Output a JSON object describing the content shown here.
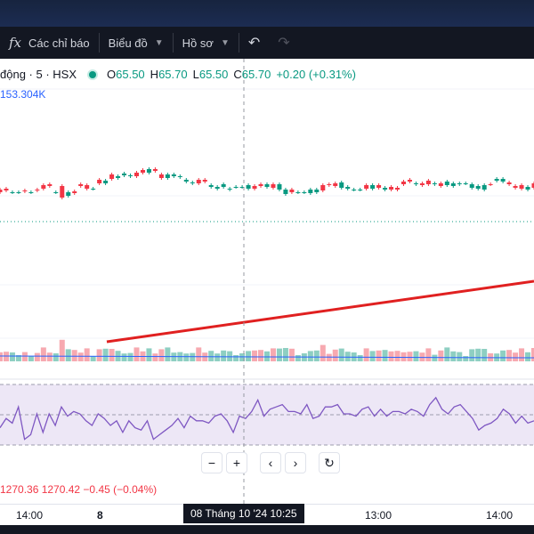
{
  "toolbar": {
    "indicators_label": "Các chỉ báo",
    "chart_label": "Biểu đồ",
    "profile_label": "Hồ sơ",
    "icons": [
      "fx-icon",
      "chevron-down-icon",
      "undo-icon",
      "redo-icon"
    ]
  },
  "legend": {
    "symbol": "động · 5 · HSX",
    "open_label": "O",
    "open": "65.50",
    "high_label": "H",
    "high": "65.70",
    "low_label": "L",
    "low": "65.50",
    "close_label": "C",
    "close": "65.70",
    "change": "+0.20 (+0.31%)"
  },
  "volume_value": "153.304K",
  "bottom_legend": "1270.36  1270.42  −0.45 (−0.04%)",
  "nav": [
    "−",
    "+",
    "‹",
    "›",
    "↻"
  ],
  "time_axis": {
    "labels": [
      "14:00",
      "8",
      "13:00",
      "14:00"
    ],
    "crosshair": "08 Tháng 10 '24   10:25"
  },
  "colors": {
    "up": "#089981",
    "down": "#f23645",
    "up_vol": "#8ecfc2",
    "down_vol": "#f7a9b0",
    "trend": "#e02020",
    "rsi": "#7e57c2"
  },
  "candles": [
    {
      "d": 1,
      "o": 0.3,
      "c": 0.0
    },
    {
      "d": 1,
      "o": 0.2,
      "c": 0.4
    },
    {
      "d": 0,
      "o": 0.0,
      "c": 0.0
    },
    {
      "d": 0,
      "o": 0.0,
      "c": 0.0
    },
    {
      "d": 1,
      "o": 0.1,
      "c": 0.2
    },
    {
      "d": 0,
      "o": 0.0,
      "c": 0.0
    },
    {
      "d": 1,
      "o": 0.2,
      "c": 0.3
    },
    {
      "d": 1,
      "o": 0.4,
      "c": 0.8
    },
    {
      "d": 1,
      "o": 0.7,
      "c": 0.9
    },
    {
      "d": 0,
      "o": 0.0,
      "c": 0.0
    },
    {
      "d": 1,
      "o": -0.6,
      "c": 0.7
    },
    {
      "d": 0,
      "o": 0.0,
      "c": -0.4
    },
    {
      "d": 1,
      "o": -0.1,
      "c": 0.1
    },
    {
      "d": 1,
      "o": 0.7,
      "c": 0.9
    },
    {
      "d": 1,
      "o": 0.4,
      "c": 0.8
    },
    {
      "d": 0,
      "o": 0.4,
      "c": 0.4
    },
    {
      "d": 1,
      "o": 1.0,
      "c": 1.4
    },
    {
      "d": 0,
      "o": 1.0,
      "c": 1.3
    },
    {
      "d": 1,
      "o": 1.5,
      "c": 2.0
    },
    {
      "d": 0,
      "o": 1.6,
      "c": 1.8
    },
    {
      "d": 0,
      "o": 2.1,
      "c": 1.9
    },
    {
      "d": 0,
      "o": 1.9,
      "c": 1.8
    },
    {
      "d": 1,
      "o": 1.8,
      "c": 2.2
    },
    {
      "d": 1,
      "o": 2.2,
      "c": 2.5
    },
    {
      "d": 0,
      "o": 2.6,
      "c": 2.2
    },
    {
      "d": 1,
      "o": 2.4,
      "c": 2.6
    },
    {
      "d": 1,
      "o": 1.6,
      "c": 2.0
    },
    {
      "d": 0,
      "o": 2.0,
      "c": 1.6
    },
    {
      "d": 0,
      "o": 2.0,
      "c": 1.8
    },
    {
      "d": 0,
      "o": 1.8,
      "c": 1.7
    },
    {
      "d": 0,
      "o": 1.4,
      "c": 1.2
    },
    {
      "d": 0,
      "o": 1.0,
      "c": 1.1
    },
    {
      "d": 1,
      "o": 1.0,
      "c": 1.4
    },
    {
      "d": 1,
      "o": 1.4,
      "c": 1.2
    },
    {
      "d": 0,
      "o": 0.6,
      "c": 0.8
    },
    {
      "d": 0,
      "o": 0.6,
      "c": 0.4
    },
    {
      "d": 0,
      "o": 0.9,
      "c": 0.6
    },
    {
      "d": 0,
      "o": 0.3,
      "c": 0.4
    },
    {
      "d": 0,
      "o": 0.6,
      "c": 0.6
    },
    {
      "d": 0,
      "o": 0.6,
      "c": 0.6
    },
    {
      "d": 0,
      "o": 0.8,
      "c": 0.4
    },
    {
      "d": 1,
      "o": 0.4,
      "c": 0.7
    },
    {
      "d": 1,
      "o": 0.7,
      "c": 0.9
    },
    {
      "d": 0,
      "o": 0.9,
      "c": 0.6
    },
    {
      "d": 1,
      "o": 0.5,
      "c": 0.9
    },
    {
      "d": 0,
      "o": 0.9,
      "c": 0.3
    },
    {
      "d": 0,
      "o": 0.3,
      "c": -0.2
    },
    {
      "d": 1,
      "o": 0.0,
      "c": 0.3
    },
    {
      "d": 0,
      "o": 0.0,
      "c": 0.0
    },
    {
      "d": 0,
      "o": 0.0,
      "c": 0.0
    },
    {
      "d": 0,
      "o": 0.3,
      "c": -0.1
    },
    {
      "d": 0,
      "o": 0.3,
      "c": 0.0
    },
    {
      "d": 1,
      "o": 0.2,
      "c": 0.8
    },
    {
      "d": 1,
      "o": 0.8,
      "c": 0.9
    },
    {
      "d": 1,
      "o": 0.7,
      "c": 1.0
    },
    {
      "d": 0,
      "o": 1.1,
      "c": 0.5
    },
    {
      "d": 0,
      "o": 0.4,
      "c": 0.6
    },
    {
      "d": 0,
      "o": 0.3,
      "c": 0.3
    },
    {
      "d": 0,
      "o": 0.3,
      "c": 0.3
    },
    {
      "d": 1,
      "o": 0.4,
      "c": 0.8
    },
    {
      "d": 0,
      "o": 0.8,
      "c": 0.4
    },
    {
      "d": 1,
      "o": 0.8,
      "c": 0.5
    },
    {
      "d": 0,
      "o": 0.3,
      "c": 0.5
    },
    {
      "d": 1,
      "o": 0.6,
      "c": 0.3
    },
    {
      "d": 1,
      "o": 0.3,
      "c": 0.5
    },
    {
      "d": 1,
      "o": 0.9,
      "c": 1.2
    },
    {
      "d": 1,
      "o": 1.2,
      "c": 1.4
    },
    {
      "d": 0,
      "o": 0.9,
      "c": 1.0
    },
    {
      "d": 1,
      "o": 0.8,
      "c": 1.0
    },
    {
      "d": 1,
      "o": 0.9,
      "c": 1.3
    },
    {
      "d": 0,
      "o": 1.0,
      "c": 0.9
    },
    {
      "d": 1,
      "o": 1.0,
      "c": 0.7
    },
    {
      "d": 0,
      "o": 1.2,
      "c": 0.8
    },
    {
      "d": 0,
      "o": 0.7,
      "c": 1.0
    },
    {
      "d": 0,
      "o": 1.0,
      "c": 0.9
    },
    {
      "d": 0,
      "o": 1.0,
      "c": 1.0
    },
    {
      "d": 0,
      "o": 0.9,
      "c": 0.5
    },
    {
      "d": 0,
      "o": 0.4,
      "c": 0.7
    },
    {
      "d": 0,
      "o": 0.8,
      "c": 0.3
    },
    {
      "d": 1,
      "o": 0.9,
      "c": 0.9
    },
    {
      "d": 0,
      "o": 1.3,
      "c": 1.5
    },
    {
      "d": 0,
      "o": 1.5,
      "c": 1.2
    },
    {
      "d": 1,
      "o": 0.9,
      "c": 1.1
    },
    {
      "d": 1,
      "o": 0.5,
      "c": 0.7
    },
    {
      "d": 1,
      "o": 0.4,
      "c": 0.8
    },
    {
      "d": 0,
      "o": 0.6,
      "c": 0.3
    },
    {
      "d": 1,
      "o": 1.0,
      "c": 0.5
    }
  ],
  "rsi": [
    0.9,
    1.3,
    1.1,
    1.8,
    0.4,
    0.6,
    1.5,
    0.7,
    1.5,
    1.0,
    1.8,
    1.4,
    1.6,
    1.5,
    1.2,
    1.0,
    1.5,
    1.3,
    1.0,
    1.2,
    0.7,
    1.2,
    0.9,
    0.8,
    1.2,
    0.4,
    0.6,
    0.8,
    1.0,
    1.3,
    0.9,
    1.4,
    1.2,
    1.2,
    1.1,
    1.4,
    1.5,
    1.2,
    0.7,
    1.4,
    1.3,
    1.6,
    2.1,
    1.4,
    1.7,
    1.8,
    1.9,
    1.6,
    1.6,
    1.5,
    1.9,
    1.3,
    1.4,
    1.8,
    1.8,
    1.9,
    1.5,
    1.5,
    1.4,
    1.7,
    1.8,
    1.4,
    1.7,
    1.4,
    1.6,
    1.6,
    1.5,
    1.7,
    1.6,
    1.4,
    1.9,
    2.2,
    1.7,
    1.5,
    1.8,
    1.9,
    1.6,
    1.3,
    0.8,
    1.0,
    1.1,
    1.3,
    1.7,
    1.5,
    1.1,
    1.4,
    1.1,
    1.2
  ]
}
